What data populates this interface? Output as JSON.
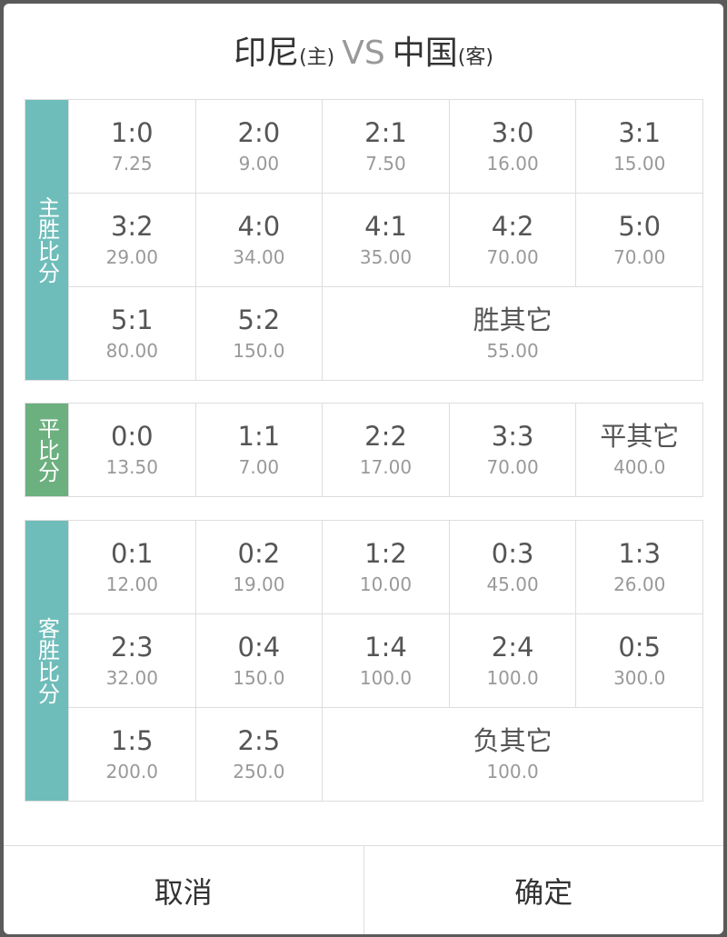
{
  "title": {
    "home": "印尼",
    "home_tag": "(主)",
    "vs": "VS",
    "away": "中国",
    "away_tag": "(客)"
  },
  "colors": {
    "home_win": "#6fbdba",
    "draw": "#6bb07e",
    "away_win": "#6fbdba"
  },
  "sections": [
    {
      "label": "主胜比分",
      "color_key": "home_win",
      "cells": [
        {
          "score": "1:0",
          "odds": "7.25"
        },
        {
          "score": "2:0",
          "odds": "9.00"
        },
        {
          "score": "2:1",
          "odds": "7.50"
        },
        {
          "score": "3:0",
          "odds": "16.00"
        },
        {
          "score": "3:1",
          "odds": "15.00"
        },
        {
          "score": "3:2",
          "odds": "29.00"
        },
        {
          "score": "4:0",
          "odds": "34.00"
        },
        {
          "score": "4:1",
          "odds": "35.00"
        },
        {
          "score": "4:2",
          "odds": "70.00"
        },
        {
          "score": "5:0",
          "odds": "70.00"
        },
        {
          "score": "5:1",
          "odds": "80.00"
        },
        {
          "score": "5:2",
          "odds": "150.0"
        },
        {
          "score": "胜其它",
          "odds": "55.00",
          "wide": true
        }
      ]
    },
    {
      "label": "平比分",
      "color_key": "draw",
      "cells": [
        {
          "score": "0:0",
          "odds": "13.50"
        },
        {
          "score": "1:1",
          "odds": "7.00"
        },
        {
          "score": "2:2",
          "odds": "17.00"
        },
        {
          "score": "3:3",
          "odds": "70.00"
        },
        {
          "score": "平其它",
          "odds": "400.0"
        }
      ]
    },
    {
      "label": "客胜比分",
      "color_key": "away_win",
      "cells": [
        {
          "score": "0:1",
          "odds": "12.00"
        },
        {
          "score": "0:2",
          "odds": "19.00"
        },
        {
          "score": "1:2",
          "odds": "10.00"
        },
        {
          "score": "0:3",
          "odds": "45.00"
        },
        {
          "score": "1:3",
          "odds": "26.00"
        },
        {
          "score": "2:3",
          "odds": "32.00"
        },
        {
          "score": "0:4",
          "odds": "150.0"
        },
        {
          "score": "1:4",
          "odds": "100.0"
        },
        {
          "score": "2:4",
          "odds": "100.0"
        },
        {
          "score": "0:5",
          "odds": "300.0"
        },
        {
          "score": "1:5",
          "odds": "200.0"
        },
        {
          "score": "2:5",
          "odds": "250.0"
        },
        {
          "score": "负其它",
          "odds": "100.0",
          "wide": true
        }
      ]
    }
  ],
  "buttons": {
    "cancel": "取消",
    "confirm": "确定"
  }
}
